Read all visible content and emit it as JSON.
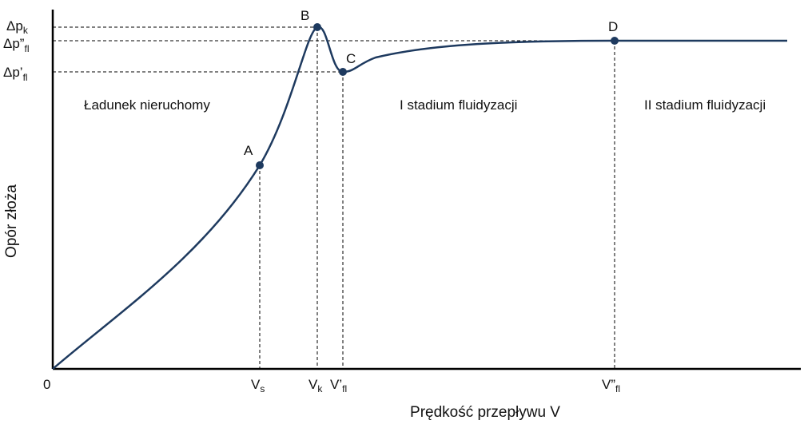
{
  "colors": {
    "curve": "#1e3a5f",
    "axis": "#000000",
    "guide": "#000000",
    "text": "#111111"
  },
  "axes": {
    "y_label": "Opór złoża",
    "x_label": "Prędkość przepływu V",
    "origin": "0"
  },
  "points": [
    {
      "id": "A",
      "label": "A"
    },
    {
      "id": "B",
      "label": "B"
    },
    {
      "id": "C",
      "label": "C"
    },
    {
      "id": "D",
      "label": "D"
    }
  ],
  "x_ticks": {
    "vs": {
      "main": "V",
      "sub": "s"
    },
    "vk": {
      "main": "V",
      "sub": "k"
    },
    "vfl1": {
      "main": "V’",
      "sub": "fl"
    },
    "vfl2": {
      "main": "V”",
      "sub": "fl"
    }
  },
  "y_ticks": {
    "dpk": {
      "main": "Δp",
      "sub": "k"
    },
    "dpfl2": {
      "main": "Δp”",
      "sub": "fl"
    },
    "dpfl1": {
      "main": "Δp’",
      "sub": "fl"
    }
  },
  "regions": {
    "fixed": "Ładunek nieruchomy",
    "stage1": "I stadium fluidyzacji",
    "stage2": "II stadium fluidyzacji"
  }
}
